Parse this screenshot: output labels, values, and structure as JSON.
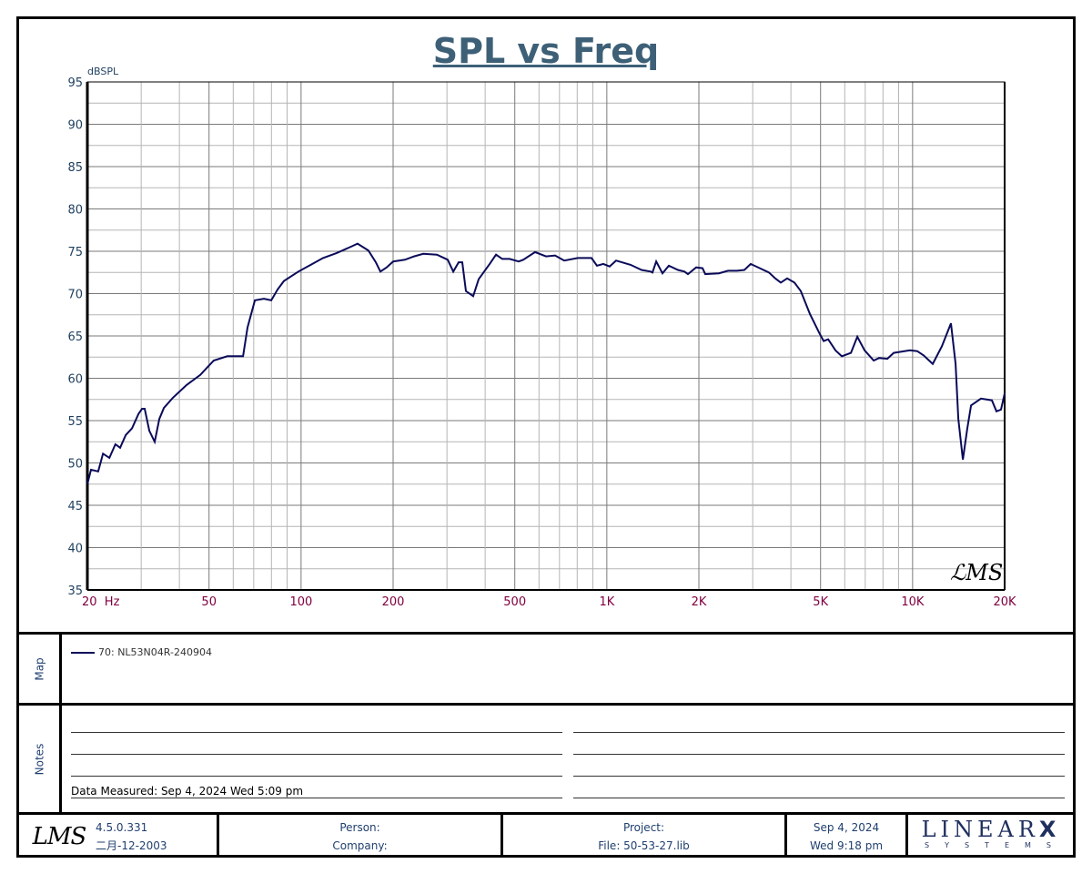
{
  "chart_data": {
    "type": "line",
    "title": "SPL vs Freq",
    "ylabel": "dBSPL",
    "xlabel": "Hz",
    "xscale": "log",
    "xlim": [
      20,
      20000
    ],
    "ylim": [
      35,
      95
    ],
    "grid": true,
    "yticks": [
      95,
      90,
      85,
      80,
      75,
      70,
      65,
      60,
      55,
      50,
      45,
      40,
      35
    ],
    "xticks": [
      {
        "value": 20,
        "label": "20  Hz"
      },
      {
        "value": 50,
        "label": "50"
      },
      {
        "value": 100,
        "label": "100"
      },
      {
        "value": 200,
        "label": "200"
      },
      {
        "value": 500,
        "label": "500"
      },
      {
        "value": 1000,
        "label": "1K"
      },
      {
        "value": 2000,
        "label": "2K"
      },
      {
        "value": 5000,
        "label": "5K"
      },
      {
        "value": 10000,
        "label": "10K"
      },
      {
        "value": 20000,
        "label": "20K"
      }
    ],
    "series": [
      {
        "name": "70: NL53N04R-240904",
        "color": "#0a0a5a",
        "x": [
          20,
          20.55,
          21.7,
          22.5,
          23.6,
          24.7,
          25.6,
          26.7,
          28.0,
          29.4,
          30.2,
          30.8,
          31.9,
          33.2,
          34.4,
          35.6,
          38.1,
          42.2,
          46.8,
          49.4,
          51.8,
          57.4,
          64.6,
          66.8,
          70.6,
          75.6,
          79.9,
          83.8,
          87.9,
          98.0,
          106.4,
          118,
          130.8,
          146.9,
          153,
          166,
          175.6,
          181.7,
          190.5,
          200,
          218.6,
          234.2,
          250.9,
          278,
          301.8,
          314.5,
          327.6,
          336.7,
          346,
          365.6,
          381,
          413.7,
          434,
          455,
          480.9,
          515,
          533,
          582.5,
          632.5,
          677.5,
          725.6,
          804,
          891,
          928,
          974,
          1021,
          1072,
          1196,
          1299,
          1391,
          1410,
          1450,
          1521,
          1595,
          1708,
          1793,
          1842,
          1959,
          2055,
          2098,
          2326,
          2490,
          2667,
          2818,
          2954,
          3165,
          3390,
          3557,
          3706,
          3888,
          4108,
          4309,
          4615,
          4944,
          5117,
          5296,
          5594,
          5869,
          6285,
          6594,
          6965,
          7462,
          7776,
          8266,
          8672,
          9804,
          10360,
          10870,
          11640,
          12470,
          13350,
          13820,
          14110,
          14600,
          15100,
          15530,
          16740,
          18170,
          18800,
          19460,
          20000
        ],
        "y": [
          47.5,
          49.2,
          49.0,
          51.1,
          50.6,
          52.2,
          51.8,
          53.3,
          54.1,
          55.8,
          56.4,
          56.4,
          53.8,
          52.5,
          55.2,
          56.5,
          57.7,
          59.2,
          60.4,
          61.3,
          62.1,
          62.6,
          62.6,
          66.0,
          69.2,
          69.4,
          69.2,
          70.5,
          71.5,
          72.6,
          73.3,
          74.2,
          74.8,
          75.6,
          75.9,
          75.1,
          73.7,
          72.6,
          73.1,
          73.8,
          74.0,
          74.4,
          74.7,
          74.6,
          74.0,
          72.6,
          73.7,
          73.7,
          70.3,
          69.7,
          71.7,
          73.5,
          74.6,
          74.1,
          74.1,
          73.8,
          74.0,
          74.9,
          74.4,
          74.5,
          73.9,
          74.2,
          74.2,
          73.3,
          73.5,
          73.2,
          73.9,
          73.4,
          72.8,
          72.6,
          72.5,
          73.8,
          72.4,
          73.3,
          72.8,
          72.6,
          72.3,
          73.1,
          73.0,
          72.3,
          72.4,
          72.7,
          72.7,
          72.8,
          73.5,
          73.0,
          72.5,
          71.8,
          71.3,
          71.8,
          71.3,
          70.3,
          67.6,
          65.4,
          64.4,
          64.6,
          63.3,
          62.6,
          63.0,
          64.9,
          63.3,
          62.1,
          62.4,
          62.3,
          63.0,
          63.3,
          63.2,
          62.7,
          61.7,
          63.8,
          66.5,
          61.7,
          55.2,
          50.4,
          54.1,
          56.8,
          57.6,
          57.4,
          56.1,
          56.3,
          58.2
        ]
      }
    ],
    "legend": "map-panel"
  },
  "watermark_logo": "LMS",
  "map": {
    "label": "Map",
    "legend_entry": "70: NL53N04R-240904"
  },
  "notes": {
    "label": "Notes",
    "measured": "Data Measured: Sep  4, 2024  Wed  5:09 pm"
  },
  "footer": {
    "logo": "LMS",
    "version": "4.5.0.331",
    "build_date": "二月-12-2003",
    "person": "Person:",
    "company": "Company:",
    "project": "Project:",
    "file": "File: 50-53-27.lib",
    "date": "Sep  4, 2024",
    "time": "Wed  9:18 pm",
    "brand_top_a": "LINEAR",
    "brand_top_b": "X",
    "brand_bottom": "SYSTEMS"
  },
  "colors": {
    "title": "#3d6077",
    "ytick": "#1f3f5f",
    "xtick": "#800040",
    "curve": "#0a0a5a"
  }
}
